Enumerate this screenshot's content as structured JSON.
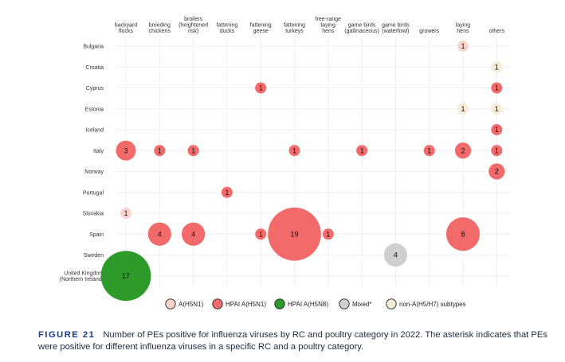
{
  "chart_data": {
    "type": "bubble",
    "categories": [
      [
        "backyard",
        "flocks"
      ],
      [
        "breeding",
        "chickens"
      ],
      [
        "broilers",
        "(heightened",
        "risk)"
      ],
      [
        "fattening",
        "ducks"
      ],
      [
        "fattening",
        "geese"
      ],
      [
        "fattening",
        "turkeys"
      ],
      [
        "free-range",
        "laying",
        "hens"
      ],
      [
        "game birds",
        "(gallinaceous)"
      ],
      [
        "game birds",
        "(waterfowl)"
      ],
      [
        "growers"
      ],
      [
        "laying",
        "hens"
      ],
      [
        "others"
      ]
    ],
    "rows": [
      [
        "Bulgaria"
      ],
      [
        "Croatia"
      ],
      [
        "Cyprus"
      ],
      [
        "Estonia"
      ],
      [
        "Iceland"
      ],
      [
        "Italy"
      ],
      [
        "Norway"
      ],
      [
        "Portugal"
      ],
      [
        "Slovakia"
      ],
      [
        "Spain"
      ],
      [
        "Sweden"
      ],
      [
        "United Kingdom",
        "(Northern Ireland)"
      ]
    ],
    "series_colors": {
      "A(H5N1)": "#fbd5cc",
      "HPAI A(H5N1)": "#f26a6a",
      "HPAI A(H5N8)": "#2e9a2a",
      "Mixed*": "#cfcfcf",
      "non-A(H5/H7) subtypes": "#f6edd9"
    },
    "points": [
      {
        "row": 0,
        "col": 10,
        "value": 1,
        "series": "A(H5N1)"
      },
      {
        "row": 1,
        "col": 11,
        "value": 1,
        "series": "non-A(H5/H7) subtypes"
      },
      {
        "row": 2,
        "col": 4,
        "value": 1,
        "series": "HPAI A(H5N1)"
      },
      {
        "row": 2,
        "col": 11,
        "value": 1,
        "series": "HPAI A(H5N1)"
      },
      {
        "row": 3,
        "col": 10,
        "value": 1,
        "series": "non-A(H5/H7) subtypes"
      },
      {
        "row": 3,
        "col": 11,
        "value": 1,
        "series": "non-A(H5/H7) subtypes"
      },
      {
        "row": 4,
        "col": 11,
        "value": 1,
        "series": "HPAI A(H5N1)"
      },
      {
        "row": 5,
        "col": 0,
        "value": 3,
        "series": "HPAI A(H5N1)"
      },
      {
        "row": 5,
        "col": 1,
        "value": 1,
        "series": "HPAI A(H5N1)"
      },
      {
        "row": 5,
        "col": 2,
        "value": 1,
        "series": "HPAI A(H5N1)"
      },
      {
        "row": 5,
        "col": 5,
        "value": 1,
        "series": "HPAI A(H5N1)"
      },
      {
        "row": 5,
        "col": 7,
        "value": 1,
        "series": "HPAI A(H5N1)"
      },
      {
        "row": 5,
        "col": 9,
        "value": 1,
        "series": "HPAI A(H5N1)"
      },
      {
        "row": 5,
        "col": 10,
        "value": 2,
        "series": "HPAI A(H5N1)"
      },
      {
        "row": 5,
        "col": 11,
        "value": 1,
        "series": "HPAI A(H5N1)"
      },
      {
        "row": 6,
        "col": 11,
        "value": 2,
        "series": "HPAI A(H5N1)"
      },
      {
        "row": 7,
        "col": 3,
        "value": 1,
        "series": "HPAI A(H5N1)"
      },
      {
        "row": 8,
        "col": 0,
        "value": 1,
        "series": "A(H5N1)"
      },
      {
        "row": 9,
        "col": 1,
        "value": 4,
        "series": "HPAI A(H5N1)"
      },
      {
        "row": 9,
        "col": 2,
        "value": 4,
        "series": "HPAI A(H5N1)"
      },
      {
        "row": 9,
        "col": 4,
        "value": 1,
        "series": "HPAI A(H5N1)"
      },
      {
        "row": 9,
        "col": 5,
        "value": 19,
        "series": "HPAI A(H5N1)"
      },
      {
        "row": 9,
        "col": 6,
        "value": 1,
        "series": "HPAI A(H5N1)"
      },
      {
        "row": 9,
        "col": 10,
        "value": 8,
        "series": "HPAI A(H5N1)"
      },
      {
        "row": 10,
        "col": 8,
        "value": 4,
        "series": "Mixed*"
      },
      {
        "row": 11,
        "col": 0,
        "value": 17,
        "series": "HPAI A(H5N8)"
      }
    ],
    "legend": [
      "A(H5N1)",
      "HPAI A(H5N1)",
      "HPAI A(H5N8)",
      "Mixed*",
      "non-A(H5/H7) subtypes"
    ],
    "legend_position": "bottom",
    "grid": true
  },
  "caption": {
    "label": "FIGURE 21",
    "text": "Number of PEs positive for influenza viruses by RC and poultry category in 2022. The asterisk indicates that PEs were positive for different influenza viruses in a specific RC and a poultry category."
  }
}
